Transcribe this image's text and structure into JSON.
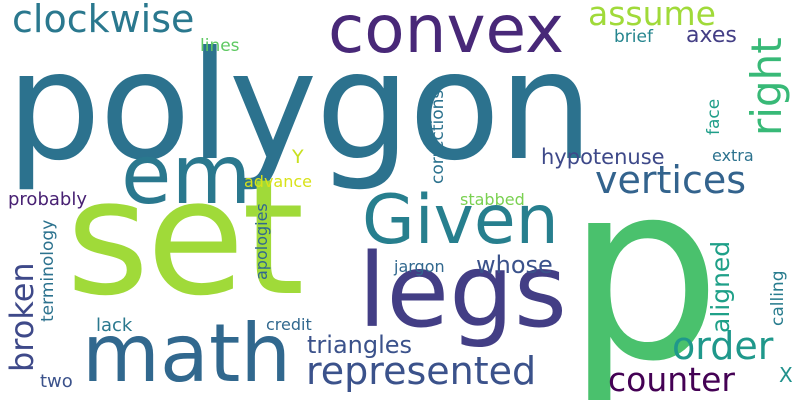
{
  "words": [
    {
      "id": "polygon",
      "text": "polygon",
      "color": "#2c728e"
    },
    {
      "id": "p",
      "text": "p",
      "color": "#4ac16d"
    },
    {
      "id": "set",
      "text": "set",
      "color": "#a0da39"
    },
    {
      "id": "math",
      "text": "math",
      "color": "#31688e"
    },
    {
      "id": "legs",
      "text": "legs",
      "color": "#433e85"
    },
    {
      "id": "em",
      "text": "em",
      "color": "#2a788e"
    },
    {
      "id": "convex",
      "text": "convex",
      "color": "#482878"
    },
    {
      "id": "given",
      "text": "Given",
      "color": "#277f8e"
    },
    {
      "id": "clockwise",
      "text": "clockwise",
      "color": "#2a788e"
    },
    {
      "id": "assume",
      "text": "assume",
      "color": "#a0da39"
    },
    {
      "id": "right",
      "text": "right",
      "color": "#38b977"
    },
    {
      "id": "vertices",
      "text": "vertices",
      "color": "#33638d"
    },
    {
      "id": "represented",
      "text": "represented",
      "color": "#3b528b"
    },
    {
      "id": "counter",
      "text": "counter",
      "color": "#440154"
    },
    {
      "id": "order",
      "text": "order",
      "color": "#1f988b"
    },
    {
      "id": "broken",
      "text": "broken",
      "color": "#3e4989"
    },
    {
      "id": "triangles",
      "text": "triangles",
      "color": "#3b528b"
    },
    {
      "id": "whose",
      "text": "whose",
      "color": "#3b528b"
    },
    {
      "id": "aligned",
      "text": "aligned",
      "color": "#1fa088"
    },
    {
      "id": "hypotenuse",
      "text": "hypotenuse",
      "color": "#3e4989"
    },
    {
      "id": "axes",
      "text": "axes",
      "color": "#433e85"
    },
    {
      "id": "lines",
      "text": "lines",
      "color": "#5ec962"
    },
    {
      "id": "brief",
      "text": "brief",
      "color": "#25858e"
    },
    {
      "id": "face",
      "text": "face",
      "color": "#1f9e89"
    },
    {
      "id": "extra",
      "text": "extra",
      "color": "#2c728e"
    },
    {
      "id": "corrections",
      "text": "corrections",
      "color": "#2c728e"
    },
    {
      "id": "y",
      "text": "Y",
      "color": "#c8e020"
    },
    {
      "id": "advance",
      "text": "advance",
      "color": "#d8e219"
    },
    {
      "id": "probably",
      "text": "probably",
      "color": "#482173"
    },
    {
      "id": "stabbed",
      "text": "stabbed",
      "color": "#7ad151"
    },
    {
      "id": "jargon",
      "text": "jargon",
      "color": "#31688e"
    },
    {
      "id": "terminology",
      "text": "terminology",
      "color": "#2c728e"
    },
    {
      "id": "apologies",
      "text": "apologies",
      "color": "#31688e"
    },
    {
      "id": "calling",
      "text": "calling",
      "color": "#287c8e"
    },
    {
      "id": "lack",
      "text": "lack",
      "color": "#2a788e"
    },
    {
      "id": "credit",
      "text": "credit",
      "color": "#31688e"
    },
    {
      "id": "two",
      "text": "two",
      "color": "#3b528b"
    },
    {
      "id": "x",
      "text": "X",
      "color": "#21918c"
    }
  ]
}
